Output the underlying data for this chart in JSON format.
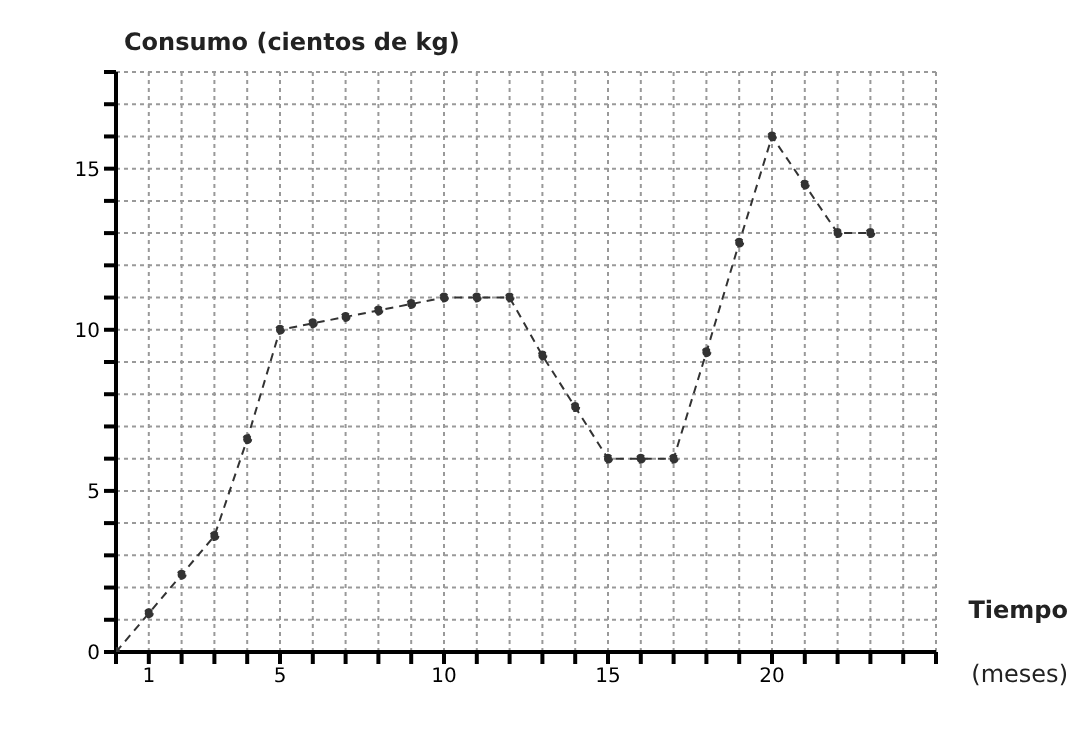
{
  "chart_data": {
    "type": "line",
    "ylabel": "Consumo (cientos de kg)",
    "xlabel": "Tiempo",
    "annotations": [
      "(meses)"
    ],
    "x": [
      0,
      1,
      2,
      3,
      4,
      5,
      6,
      7,
      8,
      9,
      10,
      11,
      12,
      13,
      14,
      15,
      16,
      17,
      18,
      19,
      20,
      21,
      22,
      23
    ],
    "series": [
      {
        "color": "#333333",
        "values": [
          0,
          1.2,
          2.4,
          3.6,
          6.6,
          10,
          10.2,
          10.4,
          10.6,
          10.8,
          11,
          11,
          11,
          9.2,
          7.6,
          6,
          6,
          6,
          9.3,
          12.7,
          16,
          14.5,
          13,
          13
        ]
      }
    ],
    "xlim": [
      0,
      25
    ],
    "ylim": [
      0,
      18
    ],
    "xticks": [
      {
        "value": 0,
        "label": null
      },
      1,
      {
        "value": 2,
        "label": null
      },
      {
        "value": 3,
        "label": null
      },
      {
        "value": 4,
        "label": null
      },
      5,
      {
        "value": 6,
        "label": null
      },
      {
        "value": 7,
        "label": null
      },
      {
        "value": 8,
        "label": null
      },
      {
        "value": 9,
        "label": null
      },
      10,
      {
        "value": 11,
        "label": null
      },
      {
        "value": 12,
        "label": null
      },
      {
        "value": 13,
        "label": null
      },
      {
        "value": 14,
        "label": null
      },
      15,
      {
        "value": 16,
        "label": null
      },
      {
        "value": 17,
        "label": null
      },
      {
        "value": 18,
        "label": null
      },
      {
        "value": 19,
        "label": null
      },
      20,
      {
        "value": 21,
        "label": null
      },
      {
        "value": 22,
        "label": null
      },
      {
        "value": 23,
        "label": null
      },
      {
        "value": 24,
        "label": null
      },
      {
        "value": 25,
        "label": null
      }
    ],
    "yticks": [
      0,
      {
        "value": 1,
        "label": null
      },
      {
        "value": 2,
        "label": null
      },
      {
        "value": 3,
        "label": null
      },
      {
        "value": 4,
        "label": null
      },
      5,
      {
        "value": 6,
        "label": null
      },
      {
        "value": 7,
        "label": null
      },
      {
        "value": 8,
        "label": null
      },
      {
        "value": 9,
        "label": null
      },
      10,
      {
        "value": 11,
        "label": null
      },
      {
        "value": 12,
        "label": null
      },
      {
        "value": 13,
        "label": null
      },
      {
        "value": 14,
        "label": null
      },
      15,
      {
        "value": 16,
        "label": null
      },
      {
        "value": 17,
        "label": null
      },
      {
        "value": 18,
        "label": null
      }
    ],
    "grid": true,
    "marker": "circle",
    "line_style": "dashed"
  }
}
